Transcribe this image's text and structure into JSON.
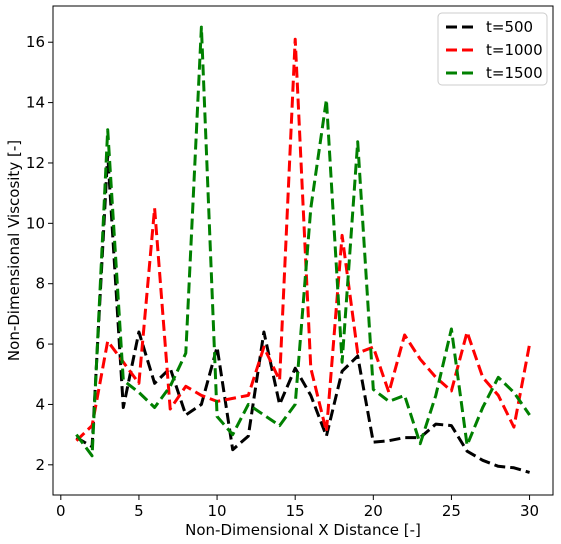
{
  "chart_data": {
    "type": "line",
    "title": "",
    "xlabel": "Non-Dimensional X Distance [-]",
    "ylabel": "Non-Dimensional Viscosity [-]",
    "xlim": [
      -0.5,
      31.5
    ],
    "ylim": [
      1.0,
      17.2
    ],
    "xticks": [
      0,
      5,
      10,
      15,
      20,
      25,
      30
    ],
    "yticks": [
      2,
      4,
      6,
      8,
      10,
      12,
      14,
      16
    ],
    "grid": false,
    "legend_position": "top-right",
    "x": [
      1,
      2,
      3,
      4,
      5,
      6,
      7,
      8,
      9,
      10,
      11,
      12,
      13,
      14,
      15,
      16,
      17,
      18,
      19,
      20,
      21,
      22,
      23,
      24,
      25,
      26,
      27,
      28,
      29,
      30
    ],
    "series": [
      {
        "name": "t=500",
        "color": "#000000",
        "style": "dashed",
        "values": [
          2.9,
          2.6,
          12.3,
          3.9,
          6.4,
          4.7,
          5.2,
          3.65,
          4.0,
          5.9,
          2.5,
          2.95,
          6.4,
          4.0,
          5.2,
          4.3,
          2.95,
          5.1,
          5.6,
          2.75,
          2.8,
          2.9,
          2.9,
          3.35,
          3.3,
          2.45,
          2.15,
          1.95,
          1.9,
          1.75
        ]
      },
      {
        "name": "t=1000",
        "color": "#ff0000",
        "style": "dashed",
        "values": [
          2.8,
          3.3,
          6.1,
          5.4,
          4.7,
          10.5,
          3.85,
          4.6,
          4.3,
          4.1,
          4.2,
          4.3,
          5.9,
          4.8,
          16.1,
          5.2,
          3.1,
          9.6,
          5.7,
          5.9,
          4.4,
          6.3,
          5.5,
          4.9,
          4.45,
          6.4,
          4.9,
          4.3,
          3.25,
          6.0
        ]
      },
      {
        "name": "t=1500",
        "color": "#008000",
        "style": "dashed",
        "values": [
          3.0,
          2.3,
          13.1,
          4.8,
          4.4,
          3.9,
          4.6,
          5.7,
          16.5,
          3.6,
          3.0,
          4.0,
          3.65,
          3.3,
          4.0,
          10.5,
          14.1,
          5.4,
          12.7,
          4.5,
          4.1,
          4.3,
          2.7,
          4.3,
          6.5,
          2.65,
          3.9,
          4.9,
          4.4,
          3.65
        ]
      }
    ]
  }
}
